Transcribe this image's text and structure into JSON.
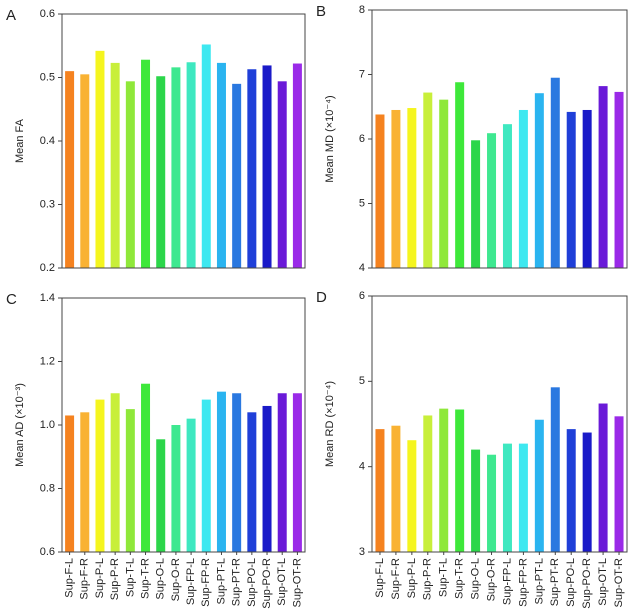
{
  "chart_data": [
    {
      "type": "bar",
      "label": "A",
      "ylabel": "Mean FA",
      "values": [
        0.51,
        0.505,
        0.542,
        0.523,
        0.494,
        0.528,
        0.502,
        0.516,
        0.524,
        0.552,
        0.523,
        0.49,
        0.513,
        0.519,
        0.494,
        0.522
      ],
      "colors": [
        "#f5821f",
        "#f9b233",
        "#f5f51e",
        "#c8ef3a",
        "#8fe83a",
        "#3ee83a",
        "#2cd64a",
        "#3ee890",
        "#3ee8c0",
        "#3ee8f0",
        "#2ab4f0",
        "#2a78e0",
        "#1f3fd8",
        "#1a1ac8",
        "#6a1ad8",
        "#9a2ae8"
      ],
      "ylim": [
        0.2,
        0.6
      ],
      "yticks": [
        0.2,
        0.3,
        0.4,
        0.5,
        0.6
      ]
    },
    {
      "type": "bar",
      "label": "B",
      "ylabel": "Mean MD (×10⁻⁴)",
      "values": [
        6.38,
        6.45,
        6.48,
        6.72,
        6.61,
        6.88,
        5.98,
        6.09,
        6.23,
        6.45,
        6.71,
        6.95,
        6.42,
        6.45,
        6.82,
        6.73
      ],
      "colors": [
        "#f5821f",
        "#f9b233",
        "#f5f51e",
        "#c8ef3a",
        "#8fe83a",
        "#3ee83a",
        "#2cd64a",
        "#3ee890",
        "#3ee8c0",
        "#3ee8f0",
        "#2ab4f0",
        "#2a78e0",
        "#1f3fd8",
        "#1a1ac8",
        "#6a1ad8",
        "#9a2ae8"
      ],
      "ylim": [
        4,
        8
      ],
      "yticks": [
        4,
        5,
        6,
        7,
        8
      ]
    },
    {
      "type": "bar",
      "label": "C",
      "ylabel": "Mean AD (×10⁻³)",
      "categories": [
        "Sup-F-L",
        "Sup-F-R",
        "Sup-P-L",
        "Sup-P-R",
        "Sup-T-L",
        "Sup-T-R",
        "Sup-O-L",
        "Sup-O-R",
        "Sup-FP-L",
        "Sup-FP-R",
        "Sup-PT-L",
        "Sup-PT-R",
        "Sup-PO-L",
        "Sup-PO-R",
        "Sup-OT-L",
        "Sup-OT-R"
      ],
      "values": [
        1.03,
        1.04,
        1.08,
        1.1,
        1.05,
        1.13,
        0.955,
        1.0,
        1.02,
        1.08,
        1.105,
        1.1,
        1.04,
        1.06,
        1.1,
        1.1
      ],
      "colors": [
        "#f5821f",
        "#f9b233",
        "#f5f51e",
        "#c8ef3a",
        "#8fe83a",
        "#3ee83a",
        "#2cd64a",
        "#3ee890",
        "#3ee8c0",
        "#3ee8f0",
        "#2ab4f0",
        "#2a78e0",
        "#1f3fd8",
        "#1a1ac8",
        "#6a1ad8",
        "#9a2ae8"
      ],
      "ylim": [
        0.6,
        1.4
      ],
      "yticks": [
        0.6,
        0.8,
        {
          "value": 1,
          "label": "1.0"
        },
        1.2,
        1.4
      ]
    },
    {
      "type": "bar",
      "label": "D",
      "ylabel": "Mean RD (×10⁻⁴)",
      "categories": [
        "Sup-F-L",
        "Sup-F-R",
        "Sup-P-L",
        "Sup-P-R",
        "Sup-T-L",
        "Sup-T-R",
        "Sup-O-L",
        "Sup-O-R",
        "Sup-FP-L",
        "Sup-FP-R",
        "Sup-PT-L",
        "Sup-PT-R",
        "Sup-PO-L",
        "Sup-PO-R",
        "Sup-OT-L",
        "Sup-OT-R"
      ],
      "values": [
        4.44,
        4.48,
        4.31,
        4.6,
        4.68,
        4.67,
        4.2,
        4.14,
        4.27,
        4.27,
        4.55,
        4.93,
        4.44,
        4.4,
        4.74,
        4.59
      ],
      "colors": [
        "#f5821f",
        "#f9b233",
        "#f5f51e",
        "#c8ef3a",
        "#8fe83a",
        "#3ee83a",
        "#2cd64a",
        "#3ee890",
        "#3ee8c0",
        "#3ee8f0",
        "#2ab4f0",
        "#2a78e0",
        "#1f3fd8",
        "#1a1ac8",
        "#6a1ad8",
        "#9a2ae8"
      ],
      "ylim": [
        3,
        6
      ],
      "yticks": [
        3,
        4,
        5,
        6
      ]
    }
  ]
}
